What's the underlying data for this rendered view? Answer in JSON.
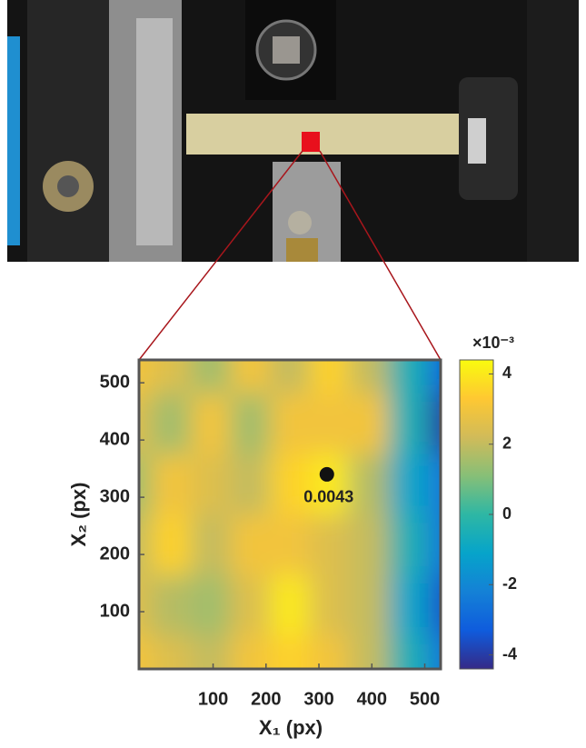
{
  "chart_data": {
    "type": "contour",
    "x_label": "X₁ (px)",
    "y_label": "X₂ (px)",
    "xlim": [
      -40,
      530
    ],
    "ylim": [
      0,
      540
    ],
    "xticks": [
      100,
      200,
      300,
      400,
      500
    ],
    "yticks": [
      100,
      200,
      300,
      400,
      500
    ],
    "z": [
      [
        3,
        2.5,
        1.5,
        3,
        2,
        3.5,
        2,
        -0.5,
        -3
      ],
      [
        2.5,
        1.5,
        3,
        1.5,
        3,
        3,
        3,
        -0.5,
        -4
      ],
      [
        1.5,
        3,
        2.5,
        2,
        3.5,
        4,
        1.8,
        -1,
        -2.5
      ],
      [
        2,
        3.5,
        2,
        3,
        3,
        2.5,
        2,
        -0.5,
        -2.5
      ],
      [
        2.5,
        1.8,
        1.5,
        2.5,
        4,
        2.5,
        2,
        -1,
        -3.5
      ],
      [
        3,
        2.5,
        2,
        3,
        3.5,
        3,
        2,
        -0.5,
        -2.5
      ]
    ],
    "clim": [
      -4.4,
      4.4
    ],
    "cticks": [
      4,
      2,
      0,
      -2,
      -4
    ],
    "colorbar_label": "×10⁻³",
    "colormap": [
      "#352a87",
      "#0f5cdd",
      "#1481d6",
      "#06a4ca",
      "#2eb7a4",
      "#87bf77",
      "#d1bb59",
      "#fec832",
      "#f9fb0e"
    ],
    "marker": {
      "x": 315,
      "y": 340,
      "value": 0.0043
    }
  }
}
